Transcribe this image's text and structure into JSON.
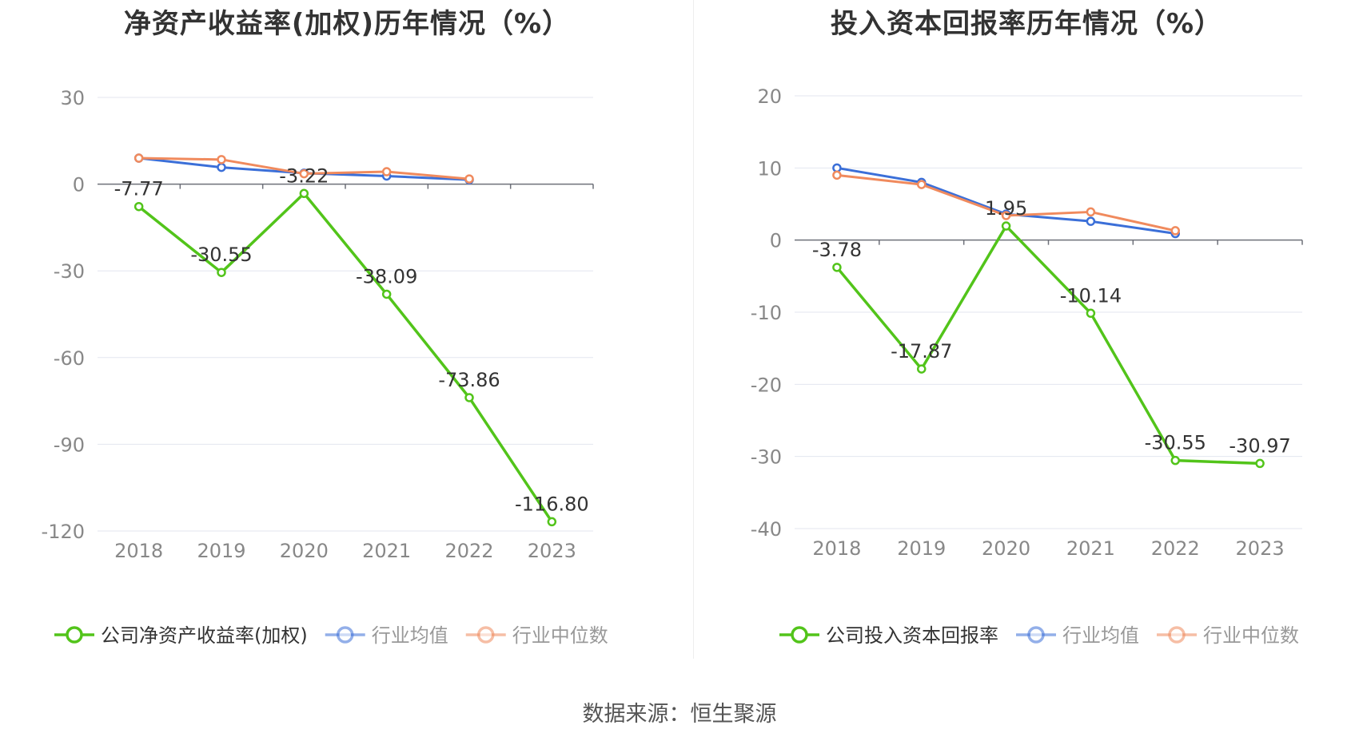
{
  "source_label": "数据来源：恒生聚源",
  "chart_data": [
    {
      "type": "line",
      "title": "净资产收益率(加权)历年情况（%）",
      "categories": [
        "2018",
        "2019",
        "2020",
        "2021",
        "2022",
        "2023"
      ],
      "y_ticks": [
        "30",
        "0",
        "-30",
        "-60",
        "-90",
        "-120"
      ],
      "ylim": [
        -120,
        30
      ],
      "grid": true,
      "legend_position": "bottom",
      "series": [
        {
          "name": "公司净资产收益率(加权)",
          "color": "#52c41a",
          "values": [
            -7.77,
            -30.55,
            -3.22,
            -38.09,
            -73.86,
            -116.8
          ],
          "labels": [
            "-7.77",
            "-30.55",
            "-3.22",
            "-38.09",
            "-73.86",
            "-116.80"
          ]
        },
        {
          "name": "行业均值",
          "color": "#3b6fd8",
          "values": [
            9.0,
            5.8,
            3.8,
            2.8,
            1.5,
            null
          ]
        },
        {
          "name": "行业中位数",
          "color": "#f08a5d",
          "values": [
            9.0,
            8.5,
            3.6,
            4.3,
            1.8,
            null
          ]
        }
      ]
    },
    {
      "type": "line",
      "title": "投入资本回报率历年情况（%）",
      "categories": [
        "2018",
        "2019",
        "2020",
        "2021",
        "2022",
        "2023"
      ],
      "y_ticks": [
        "20",
        "10",
        "0",
        "-10",
        "-20",
        "-30",
        "-40"
      ],
      "ylim": [
        -40,
        20
      ],
      "grid": true,
      "legend_position": "bottom",
      "series": [
        {
          "name": "公司投入资本回报率",
          "color": "#52c41a",
          "values": [
            -3.78,
            -17.87,
            1.95,
            -10.14,
            -30.55,
            -30.97
          ],
          "labels": [
            "-3.78",
            "-17.87",
            "1.95",
            "-10.14",
            "-30.55",
            "-30.97"
          ]
        },
        {
          "name": "行业均值",
          "color": "#3b6fd8",
          "values": [
            10.0,
            8.0,
            3.6,
            2.6,
            0.9,
            null
          ]
        },
        {
          "name": "行业中位数",
          "color": "#f08a5d",
          "values": [
            9.0,
            7.7,
            3.4,
            3.9,
            1.3,
            null
          ]
        }
      ]
    }
  ]
}
